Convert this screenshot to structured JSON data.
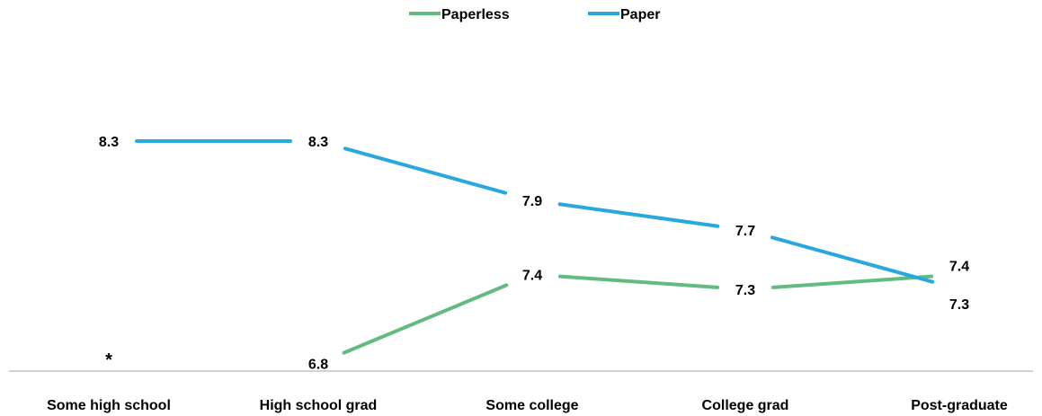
{
  "chart_data": {
    "type": "line",
    "categories": [
      "Some high school",
      "High school grad",
      "Some college",
      "College grad",
      "Post-graduate"
    ],
    "series": [
      {
        "name": "Paperless",
        "color": "#62bb7f",
        "values": [
          null,
          6.8,
          7.4,
          7.3,
          7.4
        ]
      },
      {
        "name": "Paper",
        "color": "#29a8de",
        "values": [
          8.3,
          8.3,
          7.9,
          7.7,
          7.3
        ]
      }
    ],
    "missing_marker": "*",
    "legend_position": "top-center",
    "grid": false
  }
}
